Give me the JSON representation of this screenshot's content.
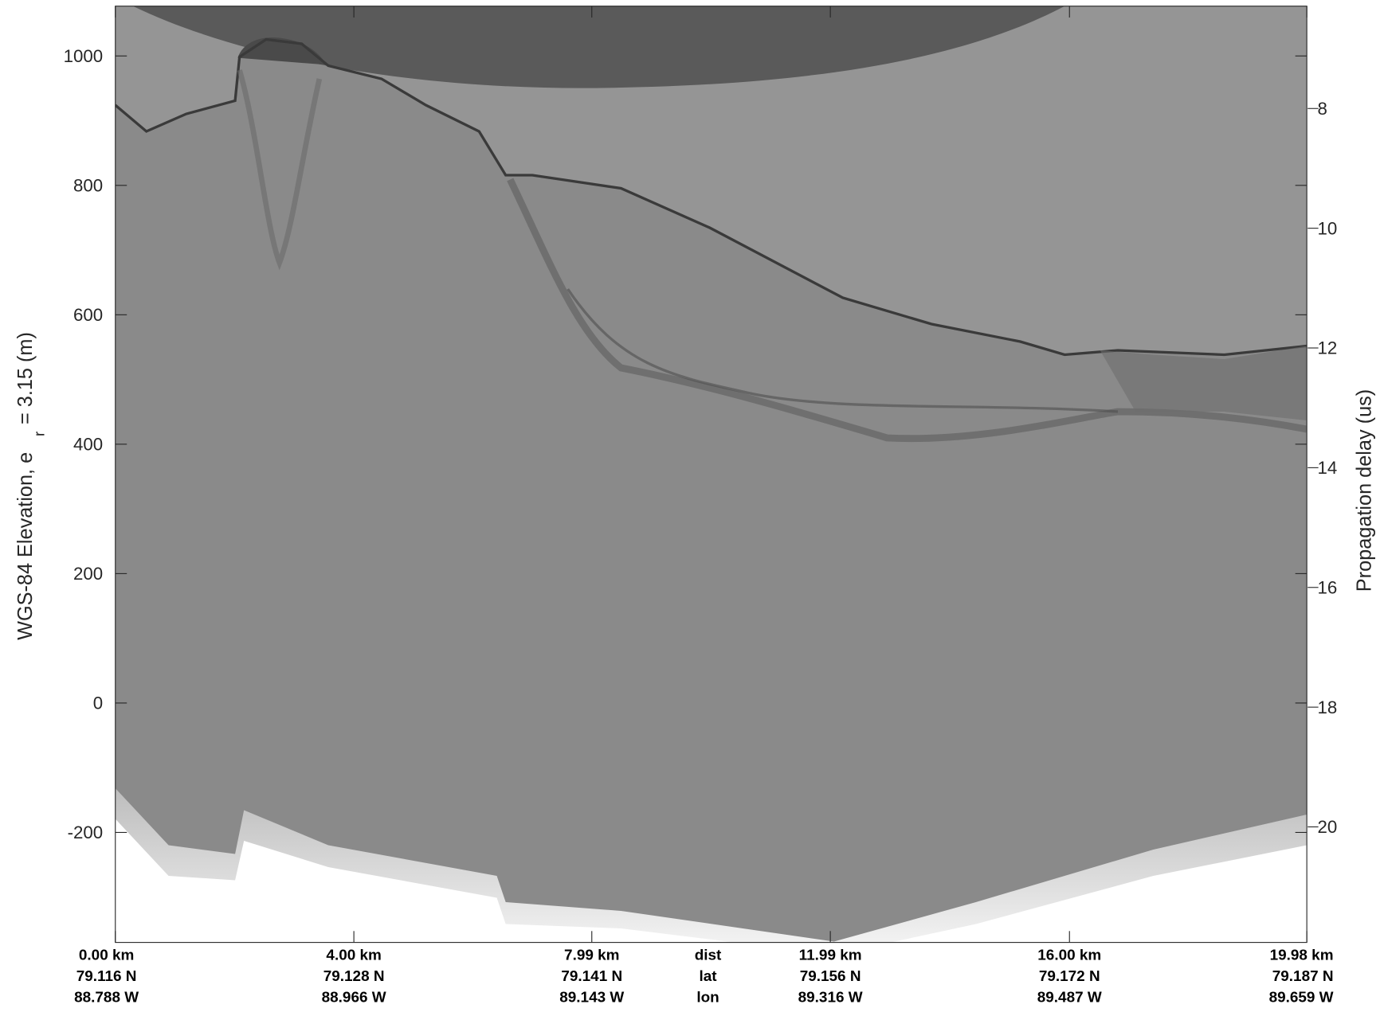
{
  "chart_data": {
    "type": "radargram",
    "ylabel": "WGS-84 Elevation, e",
    "ylabel_sub": "r",
    "ylabel_rest": "= 3.15 (m)",
    "y2label": "Propagation delay (us)",
    "ylim": [
      -370,
      1077
    ],
    "yticks": [
      -200,
      0,
      200,
      400,
      600,
      800,
      1000
    ],
    "y2lim": [
      6.29,
      21.93
    ],
    "y2ticks": [
      8,
      10,
      12,
      14,
      16,
      18,
      20
    ],
    "xlim": [
      0,
      19.98
    ],
    "xticks": [
      {
        "value": 0,
        "label": "0.00 km"
      },
      {
        "value": 4,
        "label": "4.00 km"
      },
      {
        "value": 7.99,
        "label": "7.99 km"
      },
      {
        "value": 11.99,
        "label": "11.99 km"
      },
      {
        "value": 16,
        "label": "16.00 km"
      },
      {
        "value": 19.98,
        "label": "19.98 km"
      }
    ],
    "xtick_lat": [
      "79.116 N",
      "79.128 N",
      "79.141 N",
      "79.156 N",
      "79.172 N",
      "79.187 N"
    ],
    "xtick_lon": [
      "88.788 W",
      "88.966 W",
      "89.143 W",
      "89.316 W",
      "89.487 W",
      "89.659 W"
    ],
    "xtick_row_names": [
      "dist",
      "lat",
      "lon"
    ]
  }
}
